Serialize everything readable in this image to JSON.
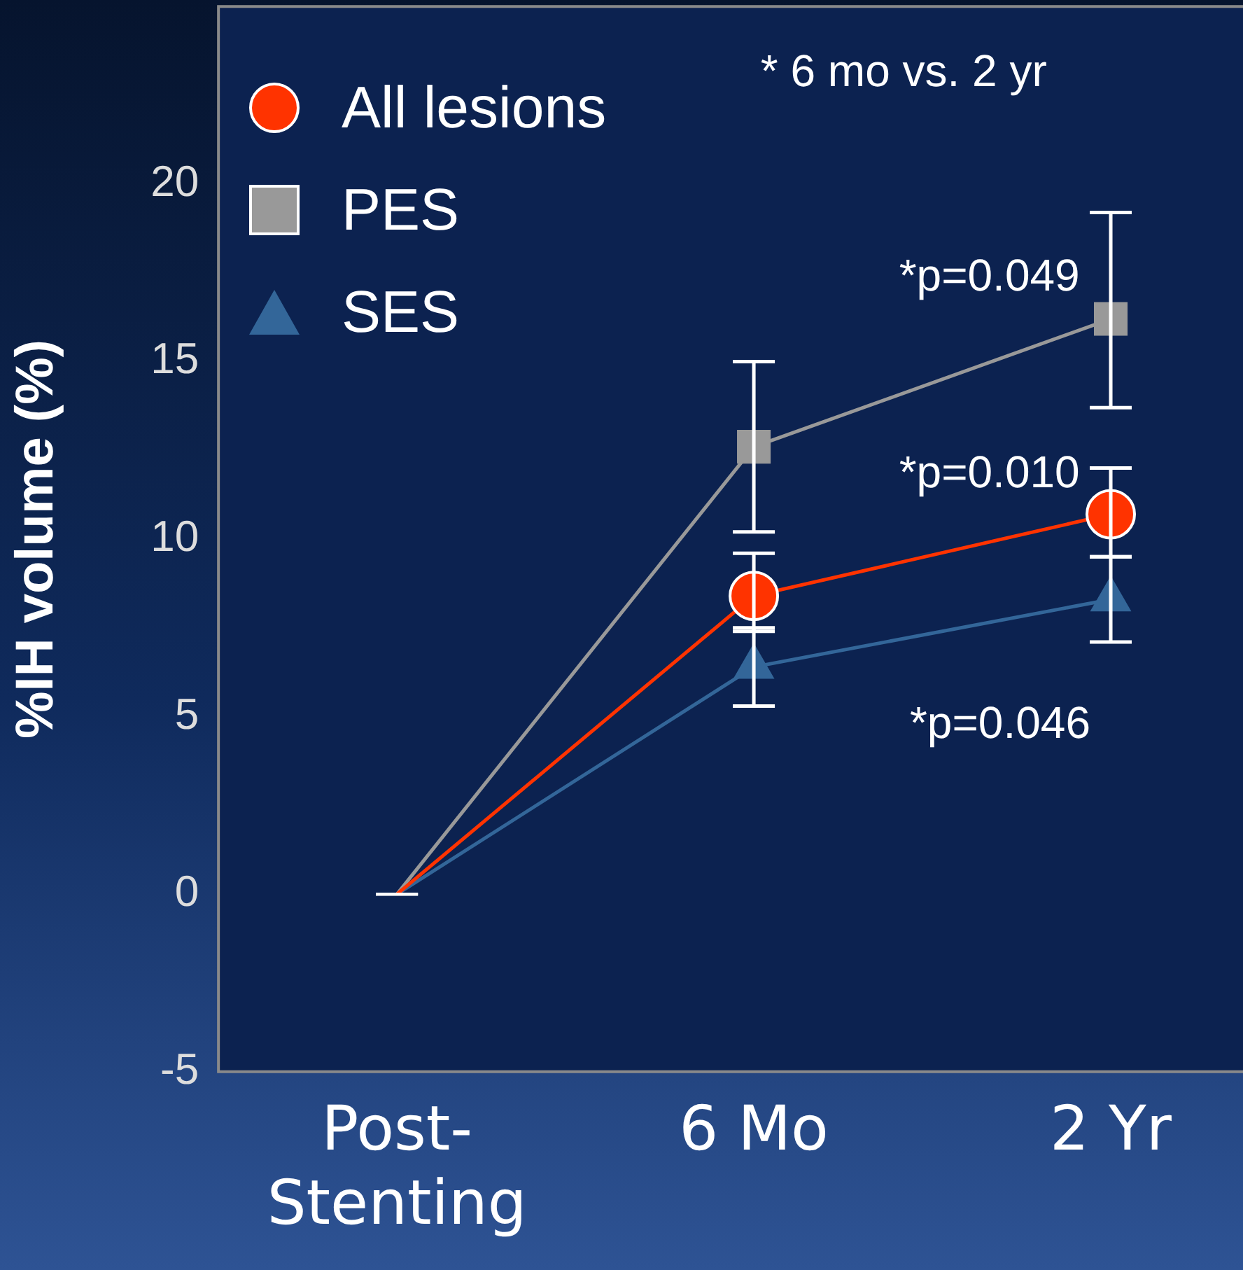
{
  "chart_data": {
    "type": "line",
    "categories": [
      "Post-Stenting",
      "6 Mo",
      "2 Yr"
    ],
    "ylabel": "%IH volume (%)",
    "ylim": [
      -5,
      25
    ],
    "yticks": [
      -5,
      0,
      5,
      10,
      15,
      20
    ],
    "grid": false,
    "legend": "top left",
    "line_style": "solid",
    "series": [
      {
        "name": "All lesions",
        "color": "#ff3300",
        "marker": "circle",
        "values": [
          0,
          8.4,
          10.7
        ],
        "errors": [
          0,
          [
            7.4,
            9.6
          ],
          [
            9.5,
            12.0
          ]
        ]
      },
      {
        "name": "PES",
        "color": "#999999",
        "marker": "square",
        "values": [
          0,
          12.6,
          16.2
        ],
        "errors": [
          0,
          [
            10.2,
            15.0
          ],
          [
            13.7,
            19.2
          ]
        ]
      },
      {
        "name": "SES",
        "color": "#336699",
        "marker": "triangle",
        "values": [
          0,
          6.4,
          8.3
        ],
        "errors": [
          0,
          [
            5.3,
            7.5
          ],
          [
            7.1,
            9.5
          ]
        ]
      }
    ],
    "annotations": [
      "* 6 mo vs. 2 yr",
      "*p=0.049",
      "*p=0.010",
      "*p=0.046"
    ]
  }
}
